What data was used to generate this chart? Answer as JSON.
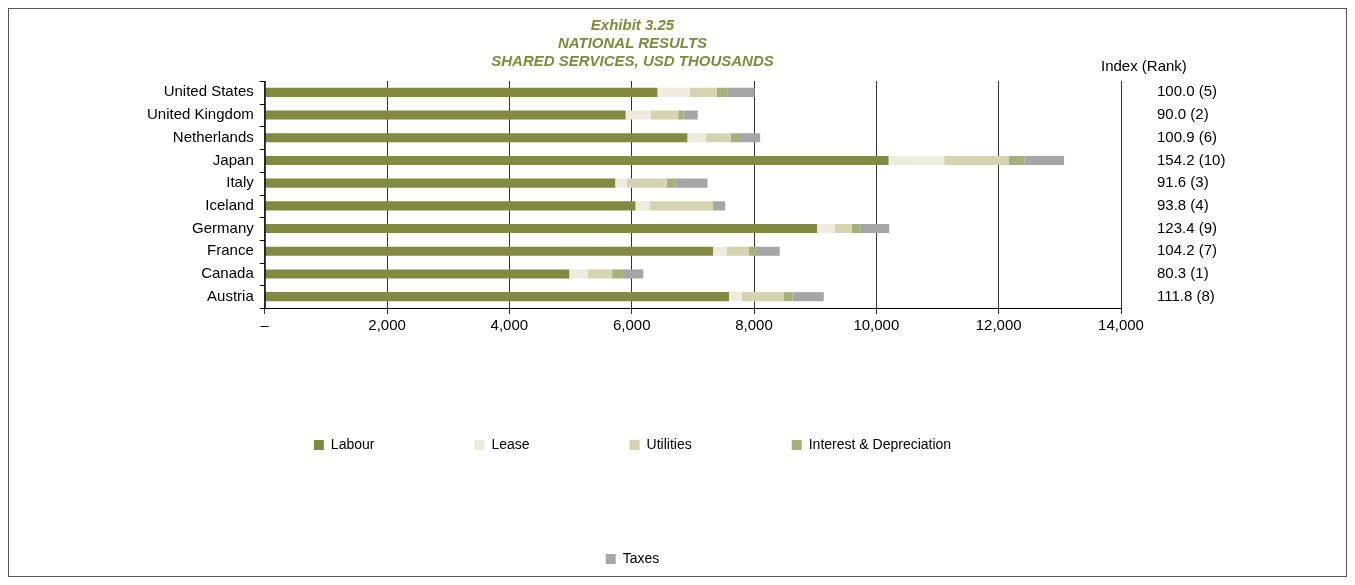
{
  "chart_data": {
    "type": "bar",
    "orientation": "horizontal",
    "stacked": true,
    "title": "Exhibit 3.25\nNATIONAL RESULTS\nSHARED SERVICES, USD THOUSANDS",
    "categories": [
      "United States",
      "United Kingdom",
      "Netherlands",
      "Japan",
      "Italy",
      "Iceland",
      "Germany",
      "France",
      "Canada",
      "Austria"
    ],
    "series": [
      {
        "name": "Labour",
        "color": "#808a40",
        "values": [
          6420,
          5900,
          6910,
          10200,
          5730,
          6060,
          9030,
          7330,
          4980,
          7590
        ]
      },
      {
        "name": "Lease",
        "color": "#ececdf",
        "values": [
          530,
          410,
          300,
          910,
          190,
          230,
          290,
          220,
          300,
          210
        ]
      },
      {
        "name": "Utilities",
        "color": "#d3d4b0",
        "values": [
          440,
          450,
          410,
          1050,
          650,
          1040,
          280,
          360,
          400,
          690
        ]
      },
      {
        "name": "Interest & Depreciation",
        "color": "#a8b07a",
        "values": [
          170,
          90,
          150,
          260,
          150,
          0,
          130,
          120,
          180,
          140
        ]
      },
      {
        "name": "Taxes",
        "color": "#a6a6a6",
        "values": [
          450,
          230,
          330,
          650,
          520,
          200,
          480,
          390,
          330,
          510
        ]
      }
    ],
    "xlim": [
      0,
      14000
    ],
    "xticks": [
      {
        "value": 0,
        "label": "–"
      },
      {
        "value": 2000,
        "label": "2,000"
      },
      {
        "value": 4000,
        "label": "4,000"
      },
      {
        "value": 6000,
        "label": "6,000"
      },
      {
        "value": 8000,
        "label": "8,000"
      },
      {
        "value": 10000,
        "label": "10,000"
      },
      {
        "value": 12000,
        "label": "12,000"
      },
      {
        "value": 14000,
        "label": "14,000"
      }
    ],
    "grid": "x",
    "legend": "bottom",
    "annotations": [
      "Index (Rank)",
      "100.0 (5)",
      "90.0 (2)",
      "100.9 (6)",
      "154.2 (10)",
      "91.6 (3)",
      "93.8 (4)",
      "123.4 (9)",
      "104.2 (7)",
      "80.3 (1)",
      "111.8 (8)"
    ]
  }
}
